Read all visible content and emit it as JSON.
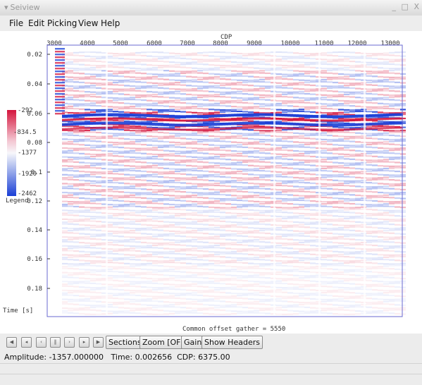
{
  "window": {
    "title": "Seiview",
    "controls": [
      "_",
      "□",
      "X"
    ]
  },
  "menu": [
    "File",
    "Edit",
    "Picking",
    "View",
    "Help"
  ],
  "plot": {
    "x_axis_title": "CDP",
    "x_ticks": [
      "3000",
      "4000",
      "5000",
      "6000",
      "7000",
      "8000",
      "9000",
      "10000",
      "11000",
      "12000",
      "13000"
    ],
    "y_ticks": [
      "0.02",
      "0.04",
      "0.06",
      "0.08",
      "0.1",
      "0.12",
      "0.14",
      "0.16",
      "0.18"
    ],
    "y_axis_title": "Time [s]",
    "footer": "Common offset gather = 5550",
    "legend": {
      "labels": [
        "-292",
        "-834.5",
        "-1377",
        "-1920",
        "-2462"
      ],
      "title": "Legend"
    }
  },
  "toolbar": {
    "nav_buttons": [
      "first-icon",
      "prev-fast-icon",
      "prev-icon",
      "pause-icon",
      "next-icon",
      "next-fast-icon",
      "last-icon"
    ],
    "sections": "Sections",
    "zoom": "Zoom [OFF]",
    "gain": "Gain",
    "show_headers": "Show Headers"
  },
  "status": "Amplitude: -1357.000000   Time: 0.002656  CDP: 6375.00",
  "colors": {
    "positive": "#d4143c",
    "negative": "#1a3fd6",
    "frame": "#6a6ad0"
  }
}
